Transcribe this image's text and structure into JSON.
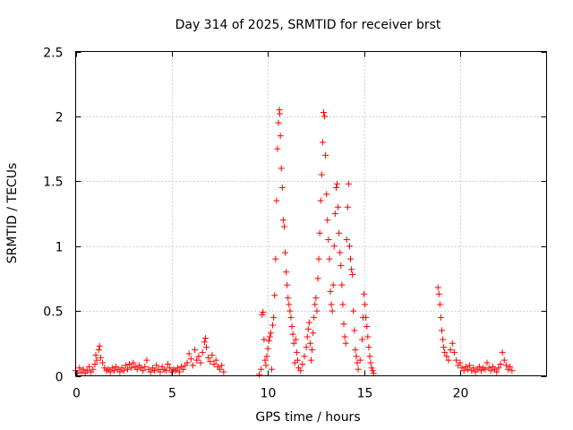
{
  "chart_data": {
    "type": "scatter",
    "title": "Day 314 of 2025, SRMTID for receiver brst",
    "xlabel": "GPS time / hours",
    "ylabel": "SRMTID / TECUs",
    "xlim": [
      0,
      24.5
    ],
    "ylim": [
      0,
      2.5
    ],
    "xticks": [
      0,
      5,
      10,
      15,
      20
    ],
    "xtick_labels": [
      "0",
      "5",
      "10",
      "15",
      "20"
    ],
    "yticks": [
      0,
      0.5,
      1,
      1.5,
      2,
      2.5
    ],
    "ytick_labels": [
      "0",
      "0.5",
      "1",
      "1.5",
      "2",
      "2.5"
    ],
    "grid": true,
    "marker": "plus",
    "series": [
      {
        "name": "SRMTID",
        "color": "#ff0000",
        "points": [
          [
            0.0,
            0.04
          ],
          [
            0.1,
            0.02
          ],
          [
            0.2,
            0.06
          ],
          [
            0.3,
            0.03
          ],
          [
            0.4,
            0.05
          ],
          [
            0.5,
            0.02
          ],
          [
            0.6,
            0.04
          ],
          [
            0.7,
            0.07
          ],
          [
            0.8,
            0.03
          ],
          [
            0.9,
            0.05
          ],
          [
            1.0,
            0.09
          ],
          [
            1.05,
            0.16
          ],
          [
            1.1,
            0.12
          ],
          [
            1.2,
            0.2
          ],
          [
            1.25,
            0.23
          ],
          [
            1.3,
            0.14
          ],
          [
            1.4,
            0.1
          ],
          [
            1.5,
            0.06
          ],
          [
            1.6,
            0.04
          ],
          [
            1.7,
            0.05
          ],
          [
            1.8,
            0.03
          ],
          [
            1.9,
            0.06
          ],
          [
            2.0,
            0.04
          ],
          [
            2.1,
            0.07
          ],
          [
            2.2,
            0.05
          ],
          [
            2.3,
            0.03
          ],
          [
            2.4,
            0.06
          ],
          [
            2.5,
            0.04
          ],
          [
            2.6,
            0.08
          ],
          [
            2.7,
            0.05
          ],
          [
            2.8,
            0.09
          ],
          [
            2.9,
            0.06
          ],
          [
            3.0,
            0.1
          ],
          [
            3.1,
            0.07
          ],
          [
            3.2,
            0.05
          ],
          [
            3.3,
            0.08
          ],
          [
            3.4,
            0.06
          ],
          [
            3.5,
            0.04
          ],
          [
            3.6,
            0.07
          ],
          [
            3.7,
            0.12
          ],
          [
            3.8,
            0.05
          ],
          [
            3.9,
            0.03
          ],
          [
            4.0,
            0.06
          ],
          [
            4.1,
            0.04
          ],
          [
            4.2,
            0.08
          ],
          [
            4.3,
            0.05
          ],
          [
            4.4,
            0.03
          ],
          [
            4.5,
            0.07
          ],
          [
            4.6,
            0.05
          ],
          [
            4.7,
            0.04
          ],
          [
            4.8,
            0.09
          ],
          [
            4.9,
            0.06
          ],
          [
            5.0,
            0.03
          ],
          [
            5.1,
            0.05
          ],
          [
            5.2,
            0.04
          ],
          [
            5.3,
            0.06
          ],
          [
            5.4,
            0.03
          ],
          [
            5.5,
            0.07
          ],
          [
            5.6,
            0.05
          ],
          [
            5.7,
            0.08
          ],
          [
            5.8,
            0.1
          ],
          [
            5.9,
            0.17
          ],
          [
            6.0,
            0.13
          ],
          [
            6.1,
            0.08
          ],
          [
            6.2,
            0.2
          ],
          [
            6.3,
            0.12
          ],
          [
            6.4,
            0.15
          ],
          [
            6.5,
            0.1
          ],
          [
            6.6,
            0.18
          ],
          [
            6.7,
            0.26
          ],
          [
            6.75,
            0.29
          ],
          [
            6.8,
            0.22
          ],
          [
            6.9,
            0.14
          ],
          [
            7.0,
            0.11
          ],
          [
            7.1,
            0.16
          ],
          [
            7.2,
            0.09
          ],
          [
            7.3,
            0.12
          ],
          [
            7.4,
            0.07
          ],
          [
            7.5,
            0.05
          ],
          [
            7.6,
            0.08
          ],
          [
            7.7,
            0.03
          ],
          [
            9.55,
            0.01
          ],
          [
            9.65,
            0.05
          ],
          [
            9.7,
            0.47
          ],
          [
            9.75,
            0.49
          ],
          [
            9.8,
            0.28
          ],
          [
            9.85,
            0.12
          ],
          [
            9.9,
            0.08
          ],
          [
            9.95,
            0.15
          ],
          [
            10.0,
            0.21
          ],
          [
            10.05,
            0.27
          ],
          [
            10.1,
            0.3
          ],
          [
            10.15,
            0.33
          ],
          [
            10.2,
            0.05
          ],
          [
            10.25,
            0.39
          ],
          [
            10.3,
            0.45
          ],
          [
            10.35,
            0.62
          ],
          [
            10.4,
            0.9
          ],
          [
            10.45,
            1.35
          ],
          [
            10.5,
            1.75
          ],
          [
            10.55,
            1.95
          ],
          [
            10.6,
            2.05
          ],
          [
            10.62,
            2.02
          ],
          [
            10.65,
            1.85
          ],
          [
            10.7,
            1.6
          ],
          [
            10.75,
            1.45
          ],
          [
            10.8,
            1.2
          ],
          [
            10.85,
            1.15
          ],
          [
            10.9,
            0.95
          ],
          [
            10.95,
            0.8
          ],
          [
            11.0,
            0.7
          ],
          [
            11.05,
            0.6
          ],
          [
            11.1,
            0.55
          ],
          [
            11.15,
            0.5
          ],
          [
            11.2,
            0.45
          ],
          [
            11.25,
            0.38
          ],
          [
            11.3,
            0.32
          ],
          [
            11.35,
            0.25
          ],
          [
            11.4,
            0.1
          ],
          [
            11.45,
            0.28
          ],
          [
            11.5,
            0.18
          ],
          [
            11.55,
            0.12
          ],
          [
            11.6,
            0.06
          ],
          [
            11.7,
            0.04
          ],
          [
            11.8,
            0.09
          ],
          [
            11.9,
            0.15
          ],
          [
            12.0,
            0.22
          ],
          [
            12.05,
            0.3
          ],
          [
            12.1,
            0.36
          ],
          [
            12.15,
            0.41
          ],
          [
            12.2,
            0.25
          ],
          [
            12.25,
            0.12
          ],
          [
            12.3,
            0.2
          ],
          [
            12.35,
            0.33
          ],
          [
            12.4,
            0.45
          ],
          [
            12.45,
            0.55
          ],
          [
            12.5,
            0.6
          ],
          [
            12.55,
            0.5
          ],
          [
            12.6,
            0.75
          ],
          [
            12.65,
            0.9
          ],
          [
            12.7,
            1.1
          ],
          [
            12.75,
            1.35
          ],
          [
            12.8,
            1.55
          ],
          [
            12.85,
            1.8
          ],
          [
            12.9,
            2.03
          ],
          [
            12.95,
            2.0
          ],
          [
            13.0,
            1.7
          ],
          [
            13.05,
            1.4
          ],
          [
            13.1,
            1.2
          ],
          [
            13.15,
            1.05
          ],
          [
            13.2,
            0.9
          ],
          [
            13.25,
            0.65
          ],
          [
            13.3,
            0.55
          ],
          [
            13.35,
            0.5
          ],
          [
            13.4,
            0.7
          ],
          [
            13.45,
            1.0
          ],
          [
            13.5,
            1.25
          ],
          [
            13.55,
            1.45
          ],
          [
            13.6,
            1.48
          ],
          [
            13.65,
            1.3
          ],
          [
            13.7,
            1.1
          ],
          [
            13.75,
            0.95
          ],
          [
            13.8,
            0.85
          ],
          [
            13.85,
            0.7
          ],
          [
            13.9,
            0.55
          ],
          [
            13.95,
            0.4
          ],
          [
            14.0,
            0.3
          ],
          [
            14.05,
            0.25
          ],
          [
            14.1,
            1.05
          ],
          [
            14.15,
            1.3
          ],
          [
            14.2,
            1.48
          ],
          [
            14.25,
            1.0
          ],
          [
            14.3,
            0.9
          ],
          [
            14.35,
            0.82
          ],
          [
            14.4,
            0.78
          ],
          [
            14.45,
            0.5
          ],
          [
            14.5,
            0.35
          ],
          [
            14.55,
            0.2
          ],
          [
            14.6,
            0.15
          ],
          [
            14.65,
            0.1
          ],
          [
            14.7,
            0.05
          ],
          [
            14.8,
            0.12
          ],
          [
            14.9,
            0.28
          ],
          [
            14.95,
            0.45
          ],
          [
            15.0,
            0.63
          ],
          [
            15.05,
            0.55
          ],
          [
            15.1,
            0.45
          ],
          [
            15.15,
            0.38
          ],
          [
            15.2,
            0.3
          ],
          [
            15.25,
            0.22
          ],
          [
            15.3,
            0.15
          ],
          [
            15.35,
            0.1
          ],
          [
            15.4,
            0.06
          ],
          [
            15.45,
            0.04
          ],
          [
            15.5,
            0.02
          ],
          [
            18.85,
            0.68
          ],
          [
            18.9,
            0.63
          ],
          [
            18.95,
            0.55
          ],
          [
            19.0,
            0.45
          ],
          [
            19.05,
            0.35
          ],
          [
            19.1,
            0.28
          ],
          [
            19.15,
            0.22
          ],
          [
            19.2,
            0.18
          ],
          [
            19.3,
            0.15
          ],
          [
            19.4,
            0.12
          ],
          [
            19.5,
            0.2
          ],
          [
            19.6,
            0.25
          ],
          [
            19.7,
            0.18
          ],
          [
            19.8,
            0.12
          ],
          [
            19.9,
            0.08
          ],
          [
            20.0,
            0.1
          ],
          [
            20.1,
            0.06
          ],
          [
            20.2,
            0.04
          ],
          [
            20.3,
            0.07
          ],
          [
            20.4,
            0.05
          ],
          [
            20.5,
            0.08
          ],
          [
            20.6,
            0.04
          ],
          [
            20.7,
            0.06
          ],
          [
            20.8,
            0.03
          ],
          [
            20.9,
            0.05
          ],
          [
            21.0,
            0.07
          ],
          [
            21.1,
            0.04
          ],
          [
            21.2,
            0.06
          ],
          [
            21.3,
            0.05
          ],
          [
            21.4,
            0.1
          ],
          [
            21.5,
            0.06
          ],
          [
            21.6,
            0.04
          ],
          [
            21.7,
            0.07
          ],
          [
            21.8,
            0.05
          ],
          [
            21.9,
            0.03
          ],
          [
            22.0,
            0.06
          ],
          [
            22.1,
            0.09
          ],
          [
            22.2,
            0.18
          ],
          [
            22.3,
            0.12
          ],
          [
            22.4,
            0.08
          ],
          [
            22.5,
            0.05
          ],
          [
            22.6,
            0.07
          ],
          [
            22.7,
            0.04
          ]
        ]
      }
    ]
  }
}
